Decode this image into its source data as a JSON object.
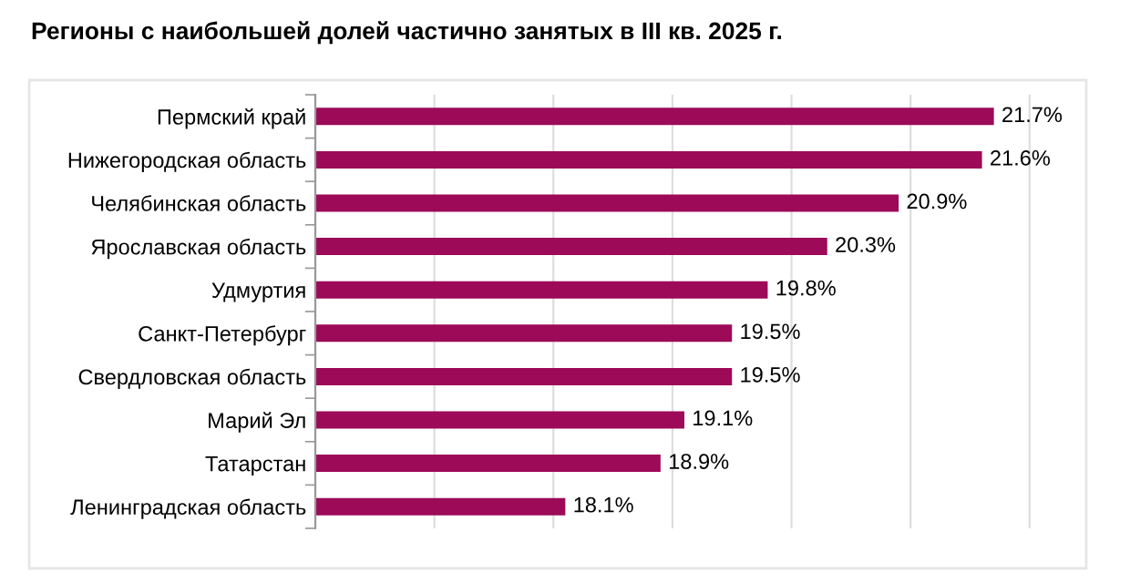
{
  "chart_data": {
    "type": "bar",
    "orientation": "horizontal",
    "title": "Регионы с наибольшей долей частично занятых в III кв. 2025 г.",
    "categories": [
      "Пермский край",
      "Нижегородская область",
      "Челябинская область",
      "Ярославская область",
      "Удмуртия",
      "Санкт-Петербург",
      "Свердловская область",
      "Марий Эл",
      "Татарстан",
      "Ленинградская область"
    ],
    "values": [
      21.7,
      21.6,
      20.9,
      20.3,
      19.8,
      19.5,
      19.5,
      19.1,
      18.9,
      18.1
    ],
    "value_labels": [
      "21.7%",
      "21.6%",
      "20.9%",
      "20.3%",
      "19.8%",
      "19.5%",
      "19.5%",
      "19.1%",
      "18.9%",
      "18.1%"
    ],
    "color": "#9c0a58",
    "grid": "x",
    "tick_labels": "y"
  }
}
